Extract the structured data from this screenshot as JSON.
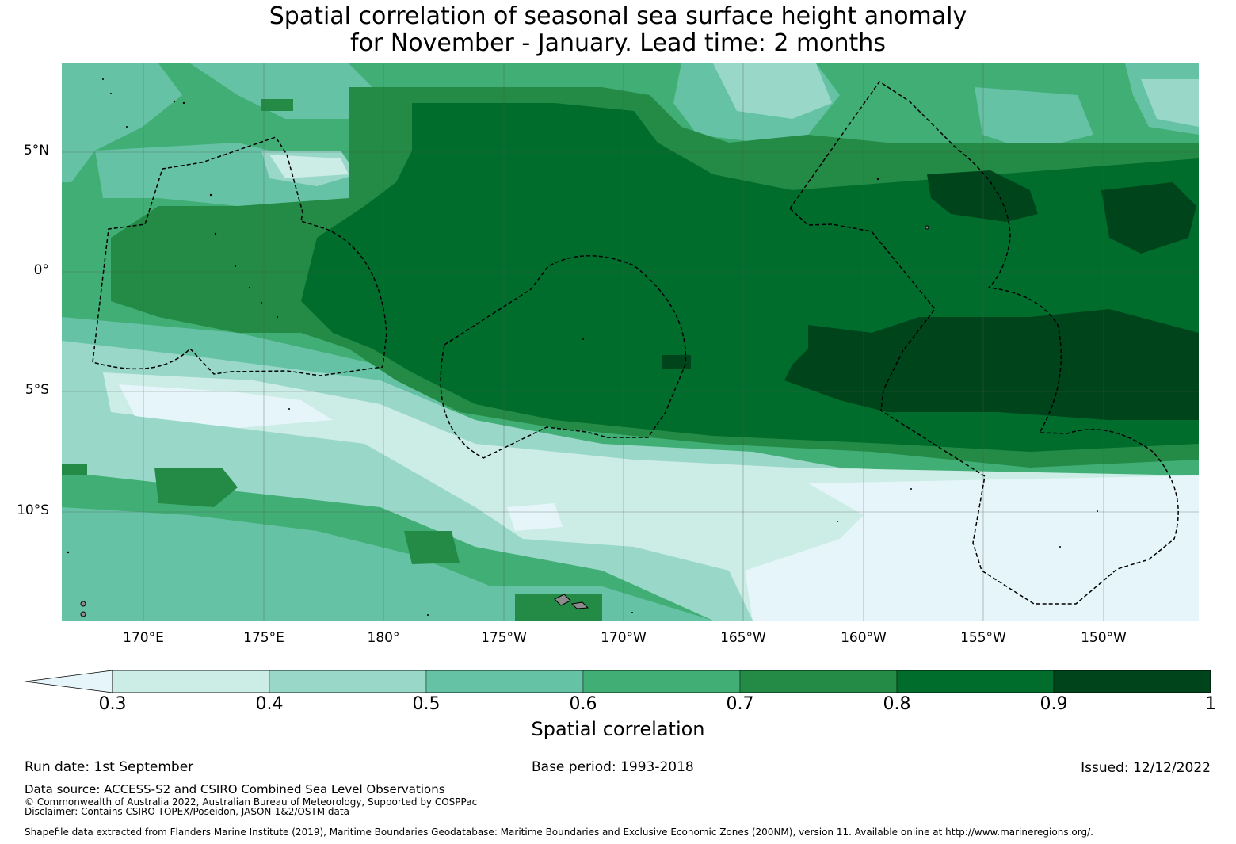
{
  "title": {
    "line1": "Spatial correlation of seasonal sea surface height anomaly",
    "line2": "for November - January. Lead time: 2 months"
  },
  "map": {
    "lat_labels": [
      "5°N",
      "0°",
      "5°S",
      "10°S"
    ],
    "lon_labels": [
      "170°E",
      "175°E",
      "180°",
      "175°W",
      "170°W",
      "165°W",
      "160°W",
      "155°W",
      "150°W"
    ],
    "land_color": "#8c8c8c",
    "eez_line_color": "#000000"
  },
  "colorbar": {
    "title": "Spatial correlation",
    "ticks": [
      "0.3",
      "0.4",
      "0.5",
      "0.6",
      "0.7",
      "0.8",
      "0.9",
      "1"
    ],
    "colors": [
      "#e5f5f9",
      "#ccece6",
      "#99d8c9",
      "#66c2a4",
      "#41ae76",
      "#238b45",
      "#006d2c",
      "#00441b"
    ],
    "extend": "min"
  },
  "footer": {
    "run_date": "Run date: 1st September",
    "base_period": "Base period: 1993-2018",
    "issued": "Issued: 12/12/2022",
    "data_source": "Data source: ACCESS-S2 and CSIRO Combined Sea Level Observations",
    "copyright": "© Commonwealth of Australia 2022, Australian Bureau of Meteorology, Supported by COSPPac",
    "disclaimer": "Disclaimer: Contains CSIRO TOPEX/Poseidon, JASON-1&2/OSTM data",
    "shapefile": "Shapefile data extracted from Flanders Marine Institute (2019), Maritime Boundaries Geodatabase: Maritime Boundaries and Exclusive Economic Zones (200NM), version 11. Available online at http://www.marineregions.org/."
  }
}
